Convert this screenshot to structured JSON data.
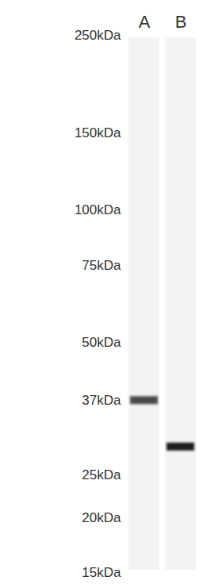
{
  "chart_data": {
    "type": "blot",
    "categories": [
      "A",
      "B"
    ],
    "values": [
      37,
      29
    ],
    "colors": [
      "#4a4a4a",
      "#1e1e1e"
    ],
    "log": "y",
    "ylim": [
      15,
      250
    ],
    "yticks": [
      {
        "value": 250,
        "label": "250kDa"
      },
      {
        "value": 150,
        "label": "150kDa"
      },
      {
        "value": 100,
        "label": "100kDa"
      },
      {
        "value": 75,
        "label": "75kDa"
      },
      {
        "value": 50,
        "label": "50kDa"
      },
      {
        "value": 37,
        "label": "37kDa"
      },
      {
        "value": 25,
        "label": "25kDa"
      },
      {
        "value": 20,
        "label": "20kDa"
      },
      {
        "value": 15,
        "label": "15kDa"
      }
    ]
  }
}
